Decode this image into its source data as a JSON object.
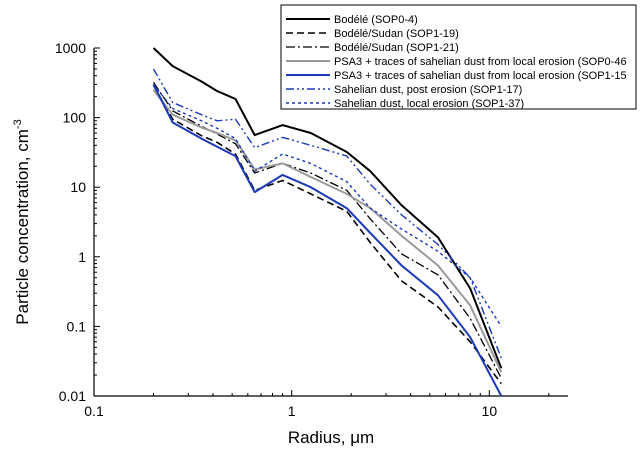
{
  "chart_data": {
    "type": "line",
    "xlabel": "Radius, μm",
    "ylabel_main": "Particle concentration, cm",
    "ylabel_sup": "-3",
    "xscale": "log",
    "yscale": "log",
    "xlim": [
      0.1,
      25
    ],
    "ylim": [
      0.01,
      1000
    ],
    "grid": false,
    "legend_position": "top-right",
    "x_ticks": [
      {
        "value": 0.1,
        "label": "0.1"
      },
      {
        "value": 1,
        "label": "1"
      },
      {
        "value": 10,
        "label": "10"
      }
    ],
    "y_ticks": [
      {
        "value": 0.01,
        "label": "0.01"
      },
      {
        "value": 0.1,
        "label": "0.1"
      },
      {
        "value": 1,
        "label": "1"
      },
      {
        "value": 10,
        "label": "10"
      },
      {
        "value": 100,
        "label": "100"
      },
      {
        "value": 1000,
        "label": "1000"
      }
    ],
    "x": [
      0.2,
      0.25,
      0.35,
      0.42,
      0.52,
      0.65,
      0.9,
      1.25,
      1.9,
      2.5,
      3.6,
      5.5,
      8,
      11.5
    ],
    "series": [
      {
        "name": "Bodélé (SOP0-4)",
        "color": "#000000",
        "width": 2,
        "dash": "",
        "values": [
          1000,
          550,
          330,
          240,
          185,
          56,
          78,
          60,
          32,
          17,
          5.5,
          1.9,
          0.35,
          0.025
        ]
      },
      {
        "name": "Bodélé/Sudan (SOP1-19)",
        "color": "#000000",
        "width": 1.6,
        "dash": "7,4",
        "values": [
          290,
          95,
          55,
          44,
          30,
          9,
          12.5,
          8,
          4.5,
          1.6,
          0.45,
          0.19,
          0.06,
          0.015
        ]
      },
      {
        "name": "Bodélé/Sudan (SOP1-21)",
        "color": "#000000",
        "width": 1.3,
        "dash": "9,3,2,3",
        "values": [
          320,
          125,
          75,
          58,
          42,
          16,
          22,
          16,
          9,
          3.5,
          1.1,
          0.55,
          0.13,
          0.018
        ]
      },
      {
        "name": "PSA3 + traces of sahelian dust from local erosion (SOP0-46",
        "color": "#9a9a9a",
        "width": 2,
        "dash": "",
        "values": [
          250,
          110,
          72,
          60,
          47,
          18,
          22,
          14,
          8,
          5,
          2,
          0.75,
          0.2,
          0.022
        ]
      },
      {
        "name": "PSA3 + traces of sahelian dust from local erosion (SOP1-15",
        "color": "#1c39b8",
        "width": 2,
        "dash": "",
        "values": [
          300,
          85,
          50,
          38,
          28,
          8.5,
          15,
          10,
          5,
          2.2,
          0.75,
          0.28,
          0.07,
          0.01
        ]
      },
      {
        "name": "Sahelian dust, post erosion (SOP1-17)",
        "color": "#1c39b8",
        "width": 1.4,
        "dash": "8,3,2,3,2,3",
        "values": [
          500,
          165,
          110,
          90,
          95,
          37,
          52,
          40,
          28,
          11,
          4,
          1.5,
          0.5,
          0.035
        ]
      },
      {
        "name": "Sahelian dust, local erosion (SOP1-37)",
        "color": "#1c39b8",
        "width": 1.4,
        "dash": "3,3",
        "values": [
          300,
          135,
          90,
          70,
          50,
          17,
          30,
          22,
          12,
          5,
          2.5,
          1.2,
          0.5,
          0.1
        ]
      }
    ]
  }
}
